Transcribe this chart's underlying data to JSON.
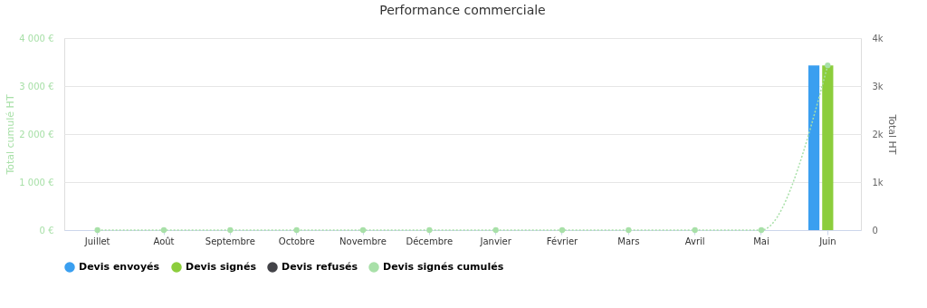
{
  "chart_data": {
    "type": "bar",
    "title": "Performance commerciale",
    "categories": [
      "Juillet",
      "Août",
      "Septembre",
      "Octobre",
      "Novembre",
      "Décembre",
      "Janvier",
      "Février",
      "Mars",
      "Avril",
      "Mai",
      "Juin"
    ],
    "series": [
      {
        "name": "Devis envoyés",
        "color": "#3a9ff0",
        "values": [
          0,
          0,
          0,
          0,
          0,
          0,
          0,
          0,
          0,
          0,
          0,
          3430
        ]
      },
      {
        "name": "Devis signés",
        "color": "#8ccd3c",
        "values": [
          0,
          0,
          0,
          0,
          0,
          0,
          0,
          0,
          0,
          0,
          0,
          3430
        ]
      },
      {
        "name": "Devis refusés",
        "color": "#434348",
        "values": [
          0,
          0,
          0,
          0,
          0,
          0,
          0,
          0,
          0,
          0,
          0,
          0
        ]
      },
      {
        "name": "Devis signés cumulés",
        "type": "line",
        "color": "#a8e0a8",
        "marker": "circle",
        "line_style": "dotted",
        "values": [
          0,
          0,
          0,
          0,
          0,
          0,
          0,
          0,
          0,
          0,
          0,
          3430
        ]
      }
    ],
    "ylabel": "Total cumulé HT",
    "y2label": "Total HT",
    "ylim": [
      0,
      4000
    ],
    "yticks": [
      {
        "value": 0,
        "label": "0 €"
      },
      {
        "value": 1000,
        "label": "1 000 €"
      },
      {
        "value": 2000,
        "label": "2 000 €"
      },
      {
        "value": 3000,
        "label": "3 000 €"
      },
      {
        "value": 4000,
        "label": "4 000 €"
      }
    ],
    "y2lim": [
      0,
      4000
    ],
    "y2ticks": [
      0,
      {
        "value": 1000,
        "label": "1k"
      },
      {
        "value": 2000,
        "label": "2k"
      },
      {
        "value": 3000,
        "label": "3k"
      },
      {
        "value": 4000,
        "label": "4k"
      }
    ],
    "grid": "y",
    "legend": "bottom"
  }
}
